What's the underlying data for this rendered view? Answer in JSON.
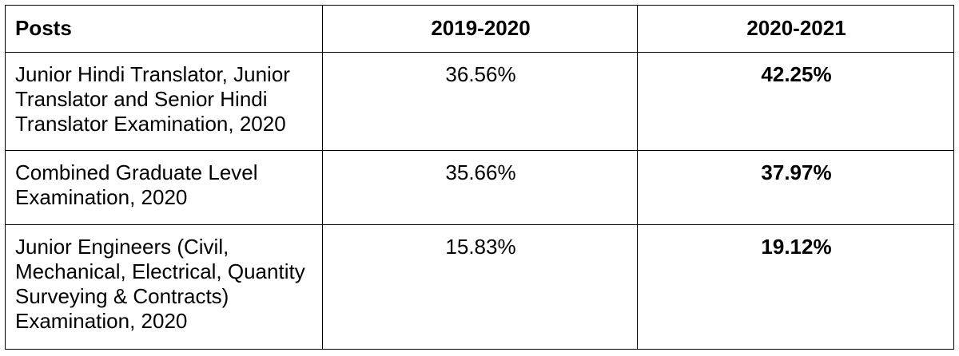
{
  "table": {
    "header": [
      "Posts",
      "2019-2020",
      "2020-2021"
    ],
    "rows": [
      [
        "Junior Hindi Translator, Junior Translator and Senior Hindi Translator Examination, 2020",
        "36.56%",
        "42.25%"
      ],
      [
        "Combined Graduate Level Examination, 2020",
        "35.66%",
        "37.97%"
      ],
      [
        "Junior Engineers (Civil, Mechanical, Electrical, Quantity Surveying & Contracts) Examination, 2020",
        "15.83%",
        "19.12%"
      ]
    ]
  }
}
